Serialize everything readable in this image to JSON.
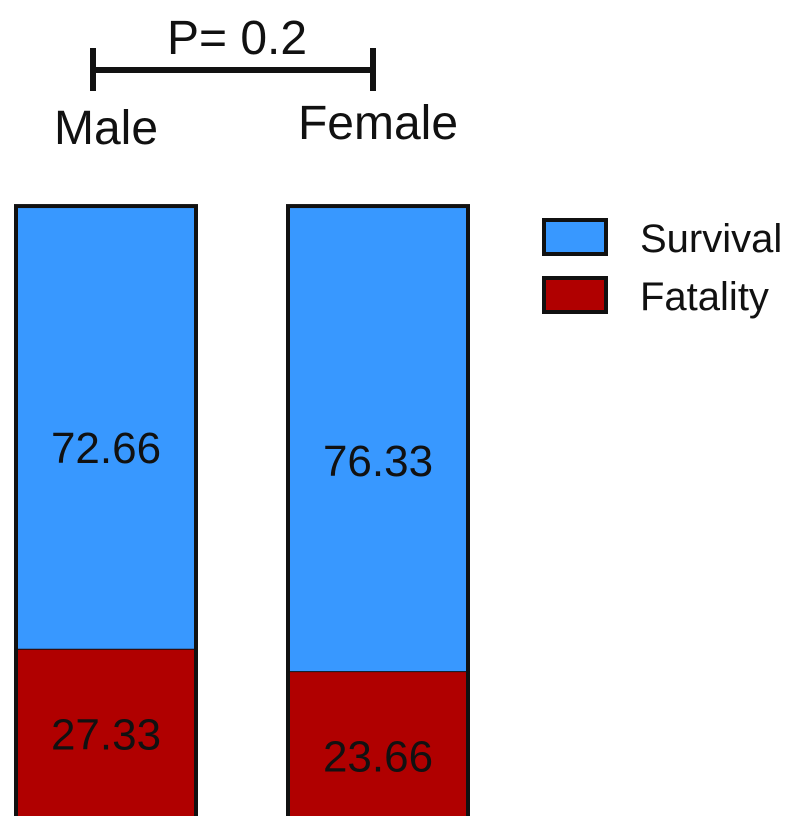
{
  "chart_data": {
    "type": "bar",
    "stacked": true,
    "categories": [
      "Male",
      "Female"
    ],
    "series": [
      {
        "name": "Survival",
        "color": "#3898FF",
        "values": [
          72.66,
          76.33
        ]
      },
      {
        "name": "Fatality",
        "color": "#B00000",
        "values": [
          27.33,
          23.66
        ]
      }
    ],
    "annotation": {
      "text": "P= 0.2",
      "between": [
        "Male",
        "Female"
      ]
    },
    "legend": {
      "position": "right",
      "entries": [
        "Survival",
        "Fatality"
      ]
    },
    "grid": false
  }
}
